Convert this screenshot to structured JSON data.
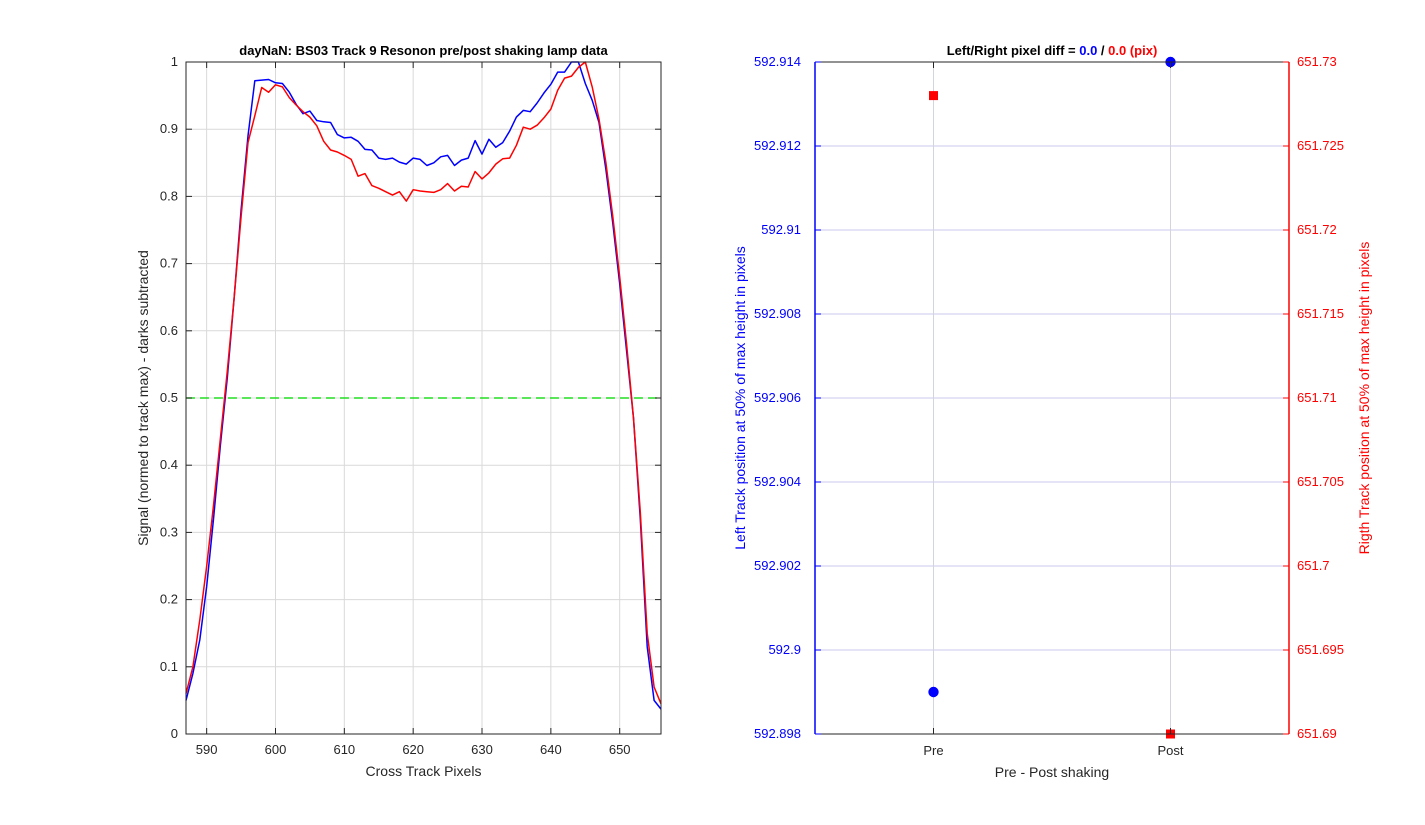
{
  "colors": {
    "blue": "#0000ff",
    "red": "#ff0000",
    "green": "#22dd22",
    "grid": "#d9d9d9",
    "axis": "#262626"
  },
  "chart_data": [
    {
      "type": "line",
      "title": "dayNaN: BS03  Track 9 Resonon pre/post shaking lamp data",
      "xlabel": "Cross Track Pixels",
      "ylabel": "Signal (normed to track max) - darks subtracted",
      "xlim": [
        587,
        656
      ],
      "ylim": [
        0,
        1
      ],
      "xticks": [
        "590",
        "600",
        "610",
        "620",
        "630",
        "640",
        "650"
      ],
      "yticks": [
        "0",
        "0.1",
        "0.2",
        "0.3",
        "0.4",
        "0.5",
        "0.6",
        "0.7",
        "0.8",
        "0.9",
        "1"
      ],
      "grid": true,
      "reference_line": {
        "y": 0.5,
        "style": "dashed",
        "color": "green"
      },
      "x": [
        587,
        588,
        589,
        590,
        591,
        592,
        593,
        594,
        595,
        596,
        597,
        598,
        599,
        600,
        601,
        602,
        603,
        604,
        605,
        606,
        607,
        608,
        609,
        610,
        611,
        612,
        613,
        614,
        615,
        616,
        617,
        618,
        619,
        620,
        621,
        622,
        623,
        624,
        625,
        626,
        627,
        628,
        629,
        630,
        631,
        632,
        633,
        634,
        635,
        636,
        637,
        638,
        639,
        640,
        641,
        642,
        643,
        644,
        645,
        646,
        647,
        648,
        649,
        650,
        651,
        652,
        653,
        654,
        655,
        656
      ],
      "series": [
        {
          "color": "blue",
          "values": [
            0.05,
            0.09,
            0.14,
            0.22,
            0.32,
            0.43,
            0.53,
            0.65,
            0.78,
            0.89,
            0.972,
            0.973,
            0.974,
            0.969,
            0.968,
            0.955,
            0.937,
            0.923,
            0.927,
            0.913,
            0.911,
            0.91,
            0.892,
            0.887,
            0.888,
            0.882,
            0.87,
            0.869,
            0.857,
            0.855,
            0.857,
            0.851,
            0.848,
            0.857,
            0.855,
            0.846,
            0.85,
            0.859,
            0.861,
            0.846,
            0.854,
            0.857,
            0.883,
            0.863,
            0.885,
            0.873,
            0.88,
            0.897,
            0.918,
            0.928,
            0.926,
            0.939,
            0.954,
            0.967,
            0.985,
            0.985,
            1.0,
            1.0,
            0.968,
            0.943,
            0.91,
            0.84,
            0.76,
            0.67,
            0.57,
            0.47,
            0.32,
            0.13,
            0.05,
            0.037
          ]
        },
        {
          "color": "red",
          "values": [
            0.06,
            0.1,
            0.17,
            0.25,
            0.34,
            0.44,
            0.54,
            0.65,
            0.77,
            0.88,
            0.92,
            0.962,
            0.955,
            0.966,
            0.963,
            0.947,
            0.936,
            0.926,
            0.918,
            0.905,
            0.882,
            0.869,
            0.866,
            0.861,
            0.855,
            0.83,
            0.834,
            0.816,
            0.812,
            0.807,
            0.802,
            0.807,
            0.793,
            0.81,
            0.808,
            0.807,
            0.806,
            0.81,
            0.819,
            0.808,
            0.815,
            0.814,
            0.837,
            0.826,
            0.835,
            0.848,
            0.856,
            0.857,
            0.876,
            0.903,
            0.9,
            0.906,
            0.917,
            0.93,
            0.958,
            0.976,
            0.979,
            0.992,
            1.0,
            0.963,
            0.915,
            0.85,
            0.77,
            0.68,
            0.58,
            0.47,
            0.33,
            0.15,
            0.07,
            0.045
          ]
        }
      ]
    },
    {
      "type": "scatter",
      "title_prefix": "Left/Right pixel diff = ",
      "title_left_value": "0.0",
      "title_sep": " / ",
      "title_right_value": "0.0 (pix)",
      "xlabel": "Pre - Post shaking",
      "categories": [
        "Pre",
        "Post"
      ],
      "left_axis": {
        "label": "Left Track position at 50% of max height in pixels",
        "color": "blue",
        "ylim": [
          592.898,
          592.914
        ],
        "ticks": [
          "592.898",
          "592.9",
          "592.902",
          "592.904",
          "592.906",
          "592.908",
          "592.91",
          "592.912",
          "592.914"
        ],
        "values": [
          592.899,
          592.914
        ]
      },
      "right_axis": {
        "label": "Rigth Track position at 50% of max height in pixels",
        "color": "red",
        "ylim": [
          651.69,
          651.73
        ],
        "ticks": [
          "651.69",
          "651.695",
          "651.7",
          "651.705",
          "651.71",
          "651.715",
          "651.72",
          "651.725",
          "651.73"
        ],
        "values": [
          651.728,
          651.69
        ]
      },
      "grid": true
    }
  ]
}
